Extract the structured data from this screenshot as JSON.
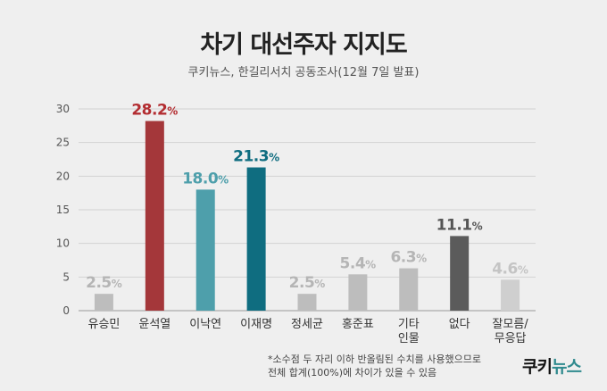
{
  "title": "차기 대선주자 지지도",
  "subtitle": "쿠키뉴스, 한길리서치 공동조사(12월 7일 발표)",
  "note_line1": "*소수점 두 자리 이하 반올림된 수치를 사용했으므로",
  "note_line2": "전체 합계(100%)에 차이가 있을 수 있음",
  "logo": {
    "part1": "쿠키",
    "part2": "뉴스"
  },
  "chart_data": {
    "type": "bar",
    "yticks": [
      "0",
      "5",
      "10",
      "15",
      "20",
      "25",
      "30"
    ],
    "ylim": [
      0,
      30
    ],
    "grid": true,
    "bars": [
      {
        "label": [
          "유승민"
        ],
        "value": 2.5,
        "num": "2.5",
        "color": "#bdbdbd",
        "label_color": "#b5b5b5"
      },
      {
        "label": [
          "윤석열"
        ],
        "value": 28.2,
        "num": "28.2",
        "color": "#a4373a",
        "label_color": "#b32d31"
      },
      {
        "label": [
          "이낙연"
        ],
        "value": 18.0,
        "num": "18.0",
        "color": "#4e9fab",
        "label_color": "#4e9fab"
      },
      {
        "label": [
          "이재명"
        ],
        "value": 21.3,
        "num": "21.3",
        "color": "#0f6d80",
        "label_color": "#0f6d80"
      },
      {
        "label": [
          "정세균"
        ],
        "value": 2.5,
        "num": "2.5",
        "color": "#bdbdbd",
        "label_color": "#b5b5b5"
      },
      {
        "label": [
          "홍준표"
        ],
        "value": 5.4,
        "num": "5.4",
        "color": "#bdbdbd",
        "label_color": "#b5b5b5"
      },
      {
        "label": [
          "기타",
          "인물"
        ],
        "value": 6.3,
        "num": "6.3",
        "color": "#bdbdbd",
        "label_color": "#b5b5b5"
      },
      {
        "label": [
          "없다"
        ],
        "value": 11.1,
        "num": "11.1",
        "color": "#5b5b5b",
        "label_color": "#555555"
      },
      {
        "label": [
          "잘모름/",
          "무응답"
        ],
        "value": 4.6,
        "num": "4.6",
        "color": "#cfcfcf",
        "label_color": "#c4c4c4"
      }
    ],
    "percent_sign": "%"
  }
}
